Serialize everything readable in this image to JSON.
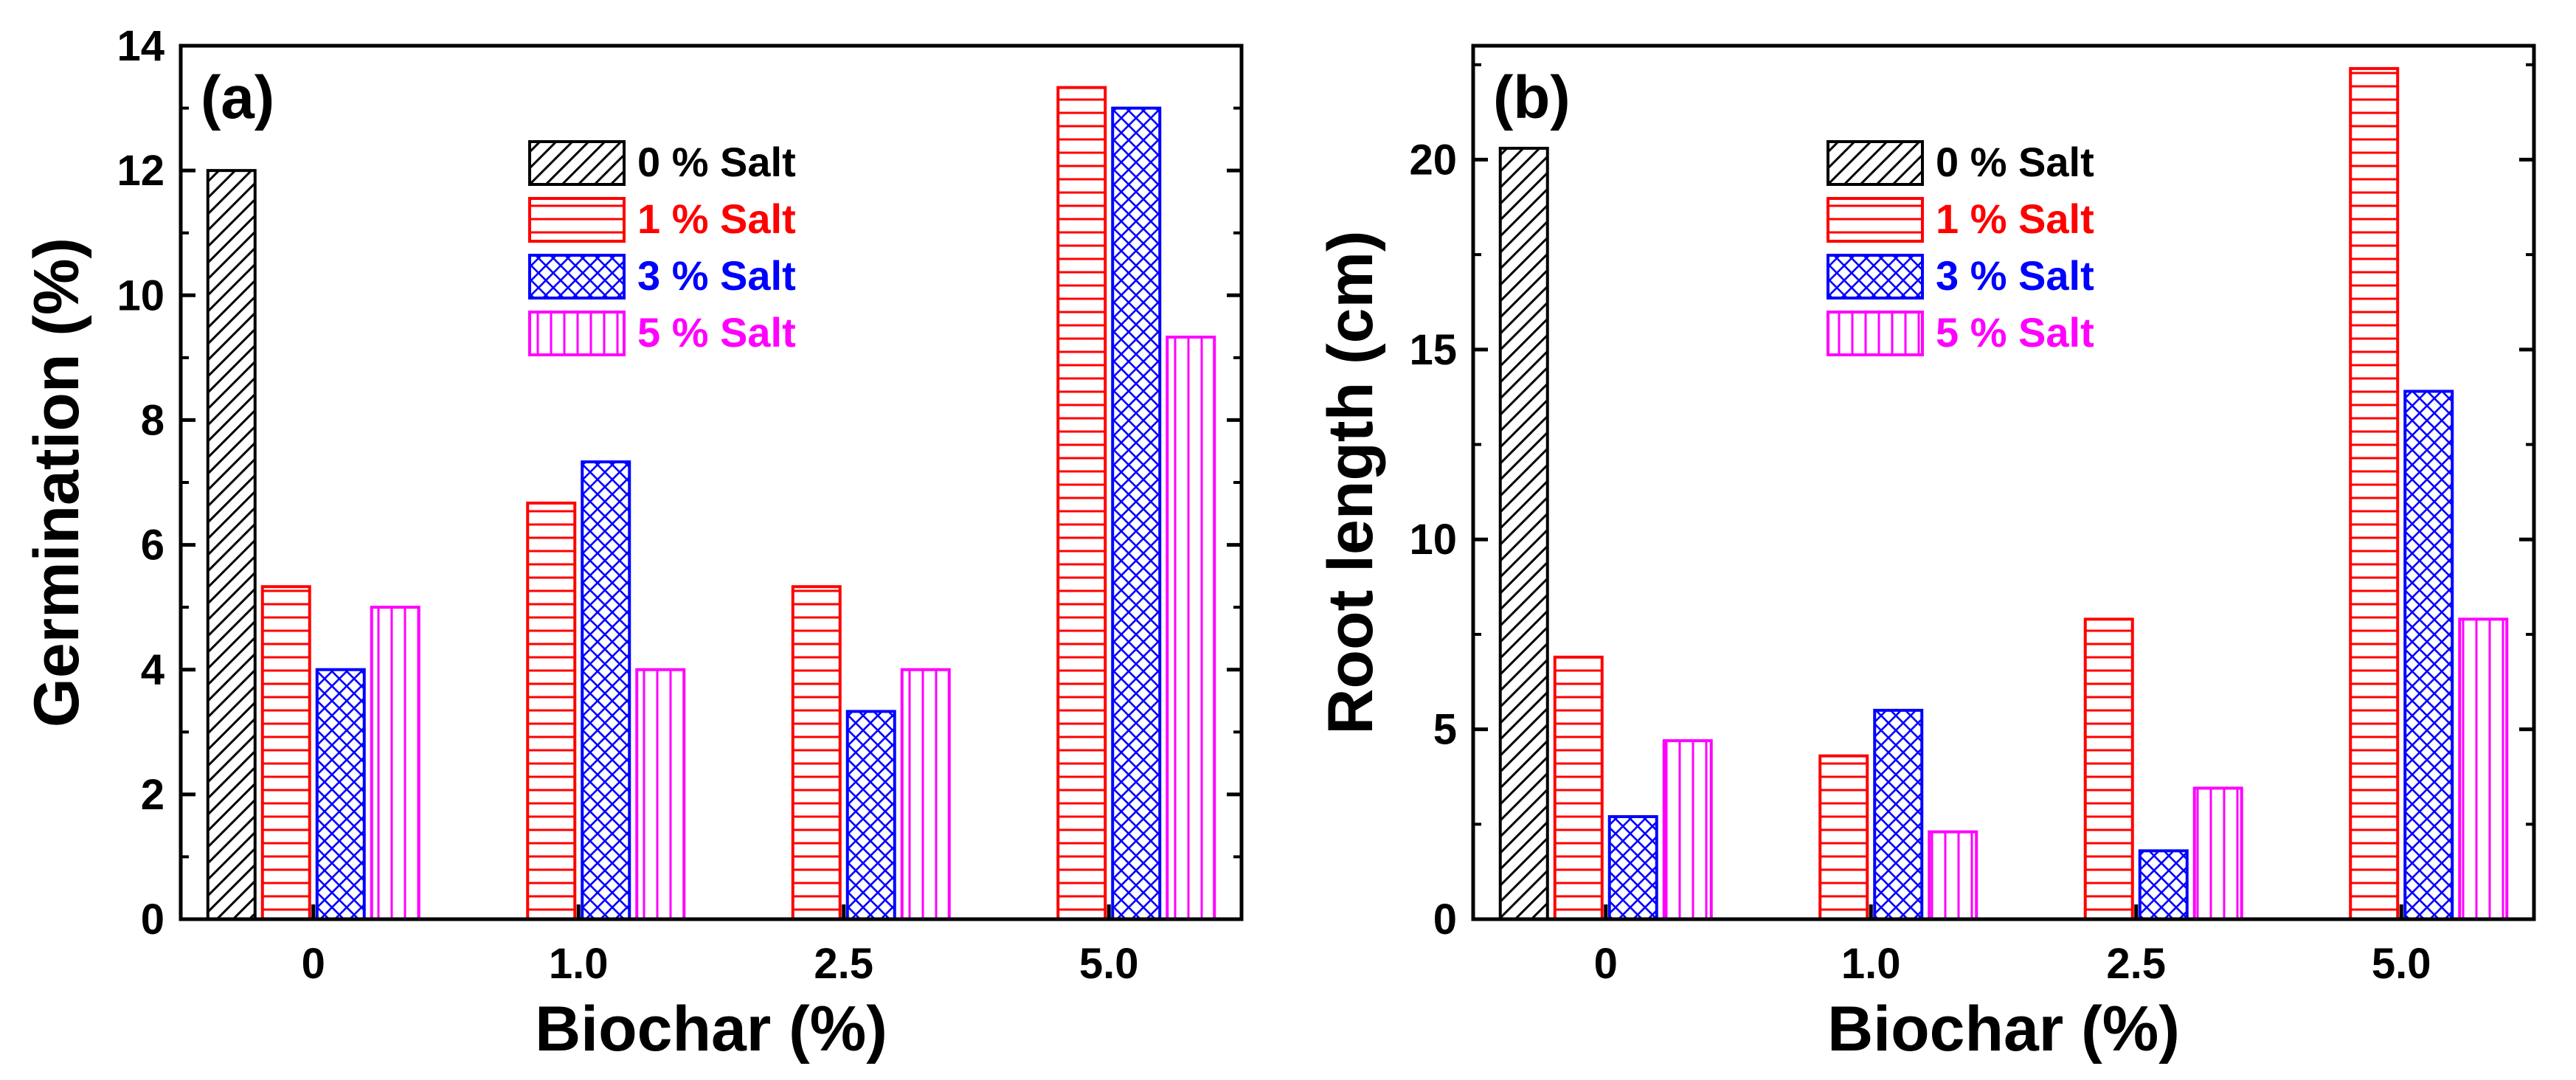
{
  "chart_data": [
    {
      "panel": "(a)",
      "type": "bar",
      "title": "",
      "xlabel": "Biochar (%)",
      "ylabel": "Germination (%)",
      "categories": [
        "0",
        "1.0",
        "2.5",
        "5.0"
      ],
      "ylim": [
        0,
        14
      ],
      "yticks": [
        "0",
        "2",
        "4",
        "6",
        "8",
        "10",
        "12",
        "14"
      ],
      "legend_position": "top-center",
      "series": [
        {
          "name": "0 % Salt",
          "values": [
            12.0,
            null,
            null,
            null
          ]
        },
        {
          "name": "1 % Salt",
          "values": [
            5.33,
            6.67,
            5.33,
            13.33
          ]
        },
        {
          "name": "3 % Salt",
          "values": [
            4.0,
            7.33,
            3.33,
            13.0
          ]
        },
        {
          "name": "5 % Salt",
          "values": [
            5.0,
            4.0,
            4.0,
            9.33
          ]
        }
      ]
    },
    {
      "panel": "(b)",
      "type": "bar",
      "title": "",
      "xlabel": "Biochar (%)",
      "ylabel": "Root length (cm)",
      "categories": [
        "0",
        "1.0",
        "2.5",
        "5.0"
      ],
      "ylim": [
        0,
        23
      ],
      "yticks": [
        "0",
        "5",
        "10",
        "15",
        "20"
      ],
      "legend_position": "top-center",
      "series": [
        {
          "name": "0 % Salt",
          "values": [
            20.3,
            null,
            null,
            null
          ]
        },
        {
          "name": "1 % Salt",
          "values": [
            6.9,
            4.3,
            7.9,
            22.4
          ]
        },
        {
          "name": "3 % Salt",
          "values": [
            2.7,
            5.5,
            1.8,
            13.9
          ]
        },
        {
          "name": "5 % Salt",
          "values": [
            4.7,
            2.3,
            3.45,
            7.9
          ]
        }
      ]
    }
  ],
  "colors": {
    "0 % Salt": "#000000",
    "1 % Salt": "#ff0000",
    "3 % Salt": "#0000ff",
    "5 % Salt": "#ff00ff"
  }
}
